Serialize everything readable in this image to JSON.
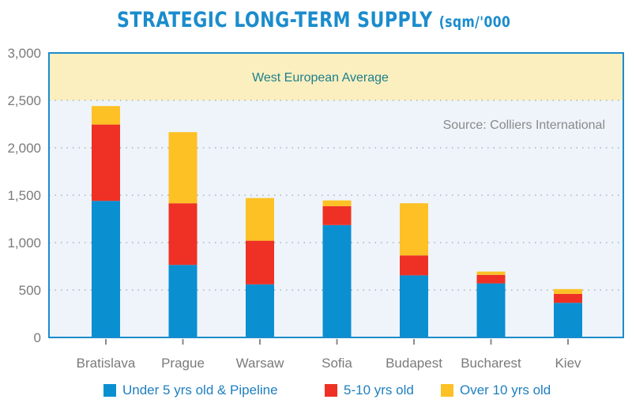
{
  "chart_data": {
    "type": "bar",
    "stacked": true,
    "title": "STRATEGIC LONG-TERM SUPPLY",
    "title_unit": "(sqm/'000",
    "categories": [
      "Bratislava",
      "Prague",
      "Warsaw",
      "Sofia",
      "Budapest",
      "Bucharest",
      "Kiev"
    ],
    "series": [
      {
        "name": "Under 5 yrs old & Pipeline",
        "color": "#0a8fd1",
        "values": [
          1440,
          765,
          560,
          1185,
          655,
          570,
          365
        ]
      },
      {
        "name": "5-10 yrs old",
        "color": "#ee3124",
        "values": [
          805,
          650,
          460,
          200,
          210,
          90,
          95
        ]
      },
      {
        "name": "Over 10 yrs old",
        "color": "#fdc125",
        "values": [
          195,
          750,
          450,
          60,
          550,
          35,
          50
        ]
      }
    ],
    "ylim": [
      0,
      3000
    ],
    "yticks": [
      0,
      500,
      1000,
      1500,
      2000,
      2500,
      3000
    ],
    "ytick_labels": [
      "0",
      "500",
      "1,000",
      "1,500",
      "2,000",
      "2,500",
      "3,000"
    ],
    "grid": true,
    "band": {
      "label": "West European Average",
      "range": [
        2500,
        3000
      ],
      "color": "#fbefbf"
    },
    "annotation": "Source: Colliers International",
    "legend_position": "bottom"
  }
}
